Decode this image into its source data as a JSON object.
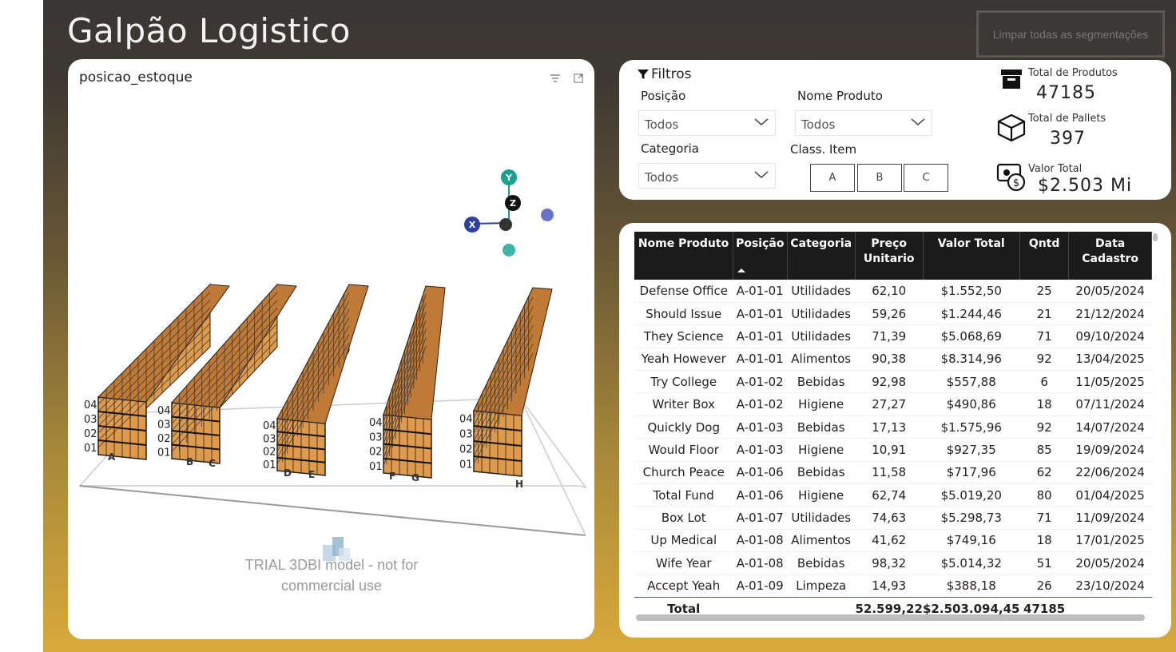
{
  "header": {
    "title": "Galpão Logistico",
    "clear_button": "Limpar todas as segmentações"
  },
  "visual": {
    "title": "posicao_estoque",
    "trial_line1": "TRIAL 3DBI model - not for",
    "trial_line2": "commercial use",
    "axis_x": "X",
    "axis_y": "Y",
    "axis_z": "Z",
    "aisle_labels": [
      "A",
      "B",
      "C",
      "D",
      "E",
      "F",
      "G",
      "H"
    ],
    "level_labels": [
      "01",
      "02",
      "03",
      "04"
    ],
    "rack_color": "#e09a4c"
  },
  "filters": {
    "title": "Filtros",
    "posicao_label": "Posição",
    "posicao_value": "Todos",
    "nome_produto_label": "Nome Produto",
    "nome_produto_value": "Todos",
    "categoria_label": "Categoria",
    "categoria_value": "Todos",
    "class_item_label": "Class. Item",
    "class_buttons": [
      "A",
      "B",
      "C"
    ]
  },
  "kpis": {
    "total_produtos_label": "Total de Produtos",
    "total_produtos_value": "47185",
    "total_pallets_label": "Total de Pallets",
    "total_pallets_value": "397",
    "valor_total_label": "Valor Total",
    "valor_total_value": "$2.503 Mi"
  },
  "table": {
    "headers": [
      "Nome Produto",
      "Posição",
      "Categoria",
      "Preço Unitario",
      "Valor Total",
      "Qntd",
      "Data Cadastro"
    ],
    "rows": [
      [
        "Defense Office",
        "A-01-01",
        "Utilidades",
        "62,10",
        "$1.552,50",
        "25",
        "20/05/2024"
      ],
      [
        "Should Issue",
        "A-01-01",
        "Utilidades",
        "59,26",
        "$1.244,46",
        "21",
        "21/12/2024"
      ],
      [
        "They Science",
        "A-01-01",
        "Utilidades",
        "71,39",
        "$5.068,69",
        "71",
        "09/10/2024"
      ],
      [
        "Yeah However",
        "A-01-01",
        "Alimentos",
        "90,38",
        "$8.314,96",
        "92",
        "13/04/2025"
      ],
      [
        "Try College",
        "A-01-02",
        "Bebidas",
        "92,98",
        "$557,88",
        "6",
        "11/05/2025"
      ],
      [
        "Writer Box",
        "A-01-02",
        "Higiene",
        "27,27",
        "$490,86",
        "18",
        "07/11/2024"
      ],
      [
        "Quickly Dog",
        "A-01-03",
        "Bebidas",
        "17,13",
        "$1.575,96",
        "92",
        "14/07/2024"
      ],
      [
        "Would Floor",
        "A-01-03",
        "Higiene",
        "10,91",
        "$927,35",
        "85",
        "19/09/2024"
      ],
      [
        "Church Peace",
        "A-01-06",
        "Bebidas",
        "11,58",
        "$717,96",
        "62",
        "22/06/2024"
      ],
      [
        "Total Fund",
        "A-01-06",
        "Higiene",
        "62,74",
        "$5.019,20",
        "80",
        "01/04/2025"
      ],
      [
        "Box Lot",
        "A-01-07",
        "Utilidades",
        "74,63",
        "$5.298,73",
        "71",
        "11/09/2024"
      ],
      [
        "Up Medical",
        "A-01-08",
        "Alimentos",
        "41,62",
        "$749,16",
        "18",
        "17/01/2025"
      ],
      [
        "Wife Year",
        "A-01-08",
        "Bebidas",
        "98,32",
        "$5.014,32",
        "51",
        "20/05/2024"
      ],
      [
        "Accept Yeah",
        "A-01-09",
        "Limpeza",
        "14,93",
        "$388,18",
        "26",
        "23/10/2024"
      ]
    ],
    "total_label": "Total",
    "total_preco": "52.599,22",
    "total_valor": "$2.503.094,45",
    "total_qntd": "47185"
  }
}
